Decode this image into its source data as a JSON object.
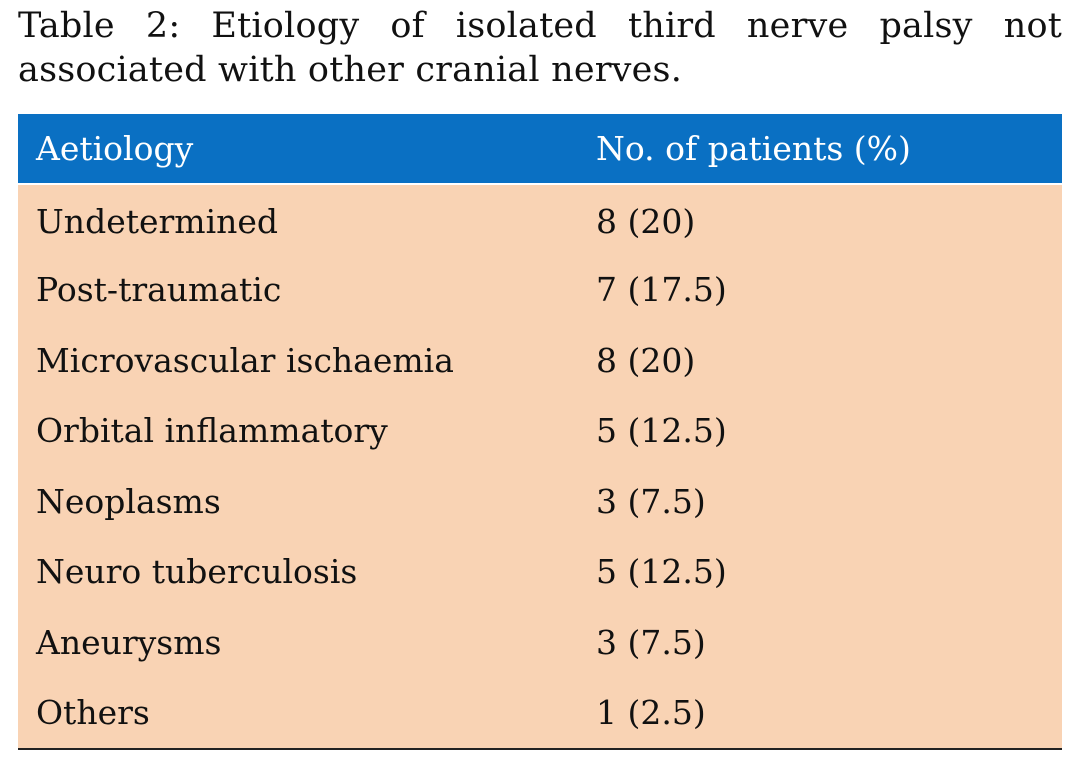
{
  "caption": "Table 2: Etiology of isolated third nerve palsy not associated with other cranial nerves.",
  "table": {
    "headers": [
      "Aetiology",
      "No. of patients (%)"
    ],
    "rows": [
      [
        "Undetermined",
        "8 (20)"
      ],
      [
        "Post-traumatic",
        "7 (17.5)"
      ],
      [
        "Microvascular ischaemia",
        "8 (20)"
      ],
      [
        "Orbital inflammatory",
        "5 (12.5)"
      ],
      [
        "Neoplasms",
        "3 (7.5)"
      ],
      [
        "Neuro tuberculosis",
        "5 (12.5)"
      ],
      [
        "Aneurysms",
        "3 (7.5)"
      ],
      [
        "Others",
        "1 (2.5)"
      ]
    ]
  },
  "colors": {
    "header_bg": "#0a70c3",
    "row_bg": "#f9d3b4"
  }
}
